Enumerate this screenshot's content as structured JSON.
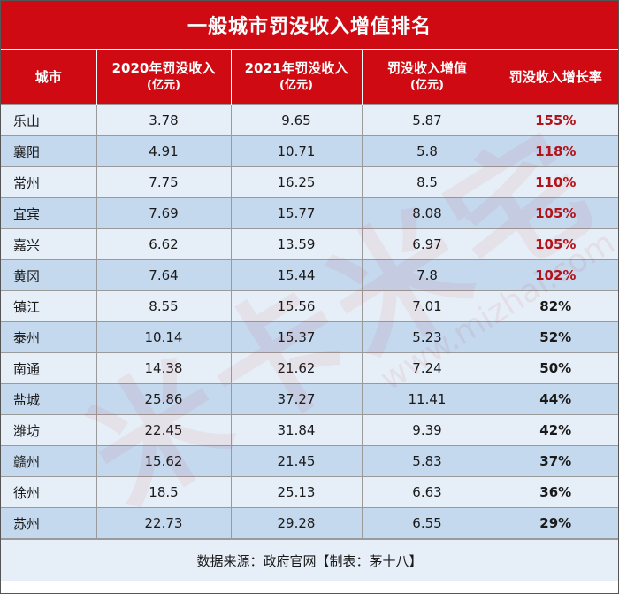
{
  "title": "一般城市罚没收入增值排名",
  "headers": [
    {
      "line1": "城市",
      "line2": ""
    },
    {
      "line1": "2020年罚没收入",
      "line2": "(亿元)"
    },
    {
      "line1": "2021年罚没收入",
      "line2": "(亿元)"
    },
    {
      "line1": "罚没收入增值",
      "line2": "(亿元)"
    },
    {
      "line1": "罚没收入增长率",
      "line2": ""
    }
  ],
  "rows": [
    {
      "city": "乐山",
      "y2020": "3.78",
      "y2021": "9.65",
      "increase": "5.87",
      "rate": "155%",
      "highlight": true
    },
    {
      "city": "襄阳",
      "y2020": "4.91",
      "y2021": "10.71",
      "increase": "5.8",
      "rate": "118%",
      "highlight": true
    },
    {
      "city": "常州",
      "y2020": "7.75",
      "y2021": "16.25",
      "increase": "8.5",
      "rate": "110%",
      "highlight": true
    },
    {
      "city": "宜宾",
      "y2020": "7.69",
      "y2021": "15.77",
      "increase": "8.08",
      "rate": "105%",
      "highlight": true
    },
    {
      "city": "嘉兴",
      "y2020": "6.62",
      "y2021": "13.59",
      "increase": "6.97",
      "rate": "105%",
      "highlight": true
    },
    {
      "city": "黄冈",
      "y2020": "7.64",
      "y2021": "15.44",
      "increase": "7.8",
      "rate": "102%",
      "highlight": true
    },
    {
      "city": "镇江",
      "y2020": "8.55",
      "y2021": "15.56",
      "increase": "7.01",
      "rate": "82%",
      "highlight": false
    },
    {
      "city": "泰州",
      "y2020": "10.14",
      "y2021": "15.37",
      "increase": "5.23",
      "rate": "52%",
      "highlight": false
    },
    {
      "city": "南通",
      "y2020": "14.38",
      "y2021": "21.62",
      "increase": "7.24",
      "rate": "50%",
      "highlight": false
    },
    {
      "city": "盐城",
      "y2020": "25.86",
      "y2021": "37.27",
      "increase": "11.41",
      "rate": "44%",
      "highlight": false
    },
    {
      "city": "潍坊",
      "y2020": "22.45",
      "y2021": "31.84",
      "increase": "9.39",
      "rate": "42%",
      "highlight": false
    },
    {
      "city": "赣州",
      "y2020": "15.62",
      "y2021": "21.45",
      "increase": "5.83",
      "rate": "37%",
      "highlight": false
    },
    {
      "city": "徐州",
      "y2020": "18.5",
      "y2021": "25.13",
      "increase": "6.63",
      "rate": "36%",
      "highlight": false
    },
    {
      "city": "苏州",
      "y2020": "22.73",
      "y2021": "29.28",
      "increase": "6.55",
      "rate": "29%",
      "highlight": false
    }
  ],
  "footer": "数据来源：政府官网【制表：茅十八】",
  "watermark": "米卡米宅",
  "watermark_url": "www.mizhai.com",
  "colors": {
    "header_red": "#cf0a12",
    "rate_red": "#b3121a",
    "row_light": "#e6eff8",
    "row_dark": "#c4d8ee"
  }
}
